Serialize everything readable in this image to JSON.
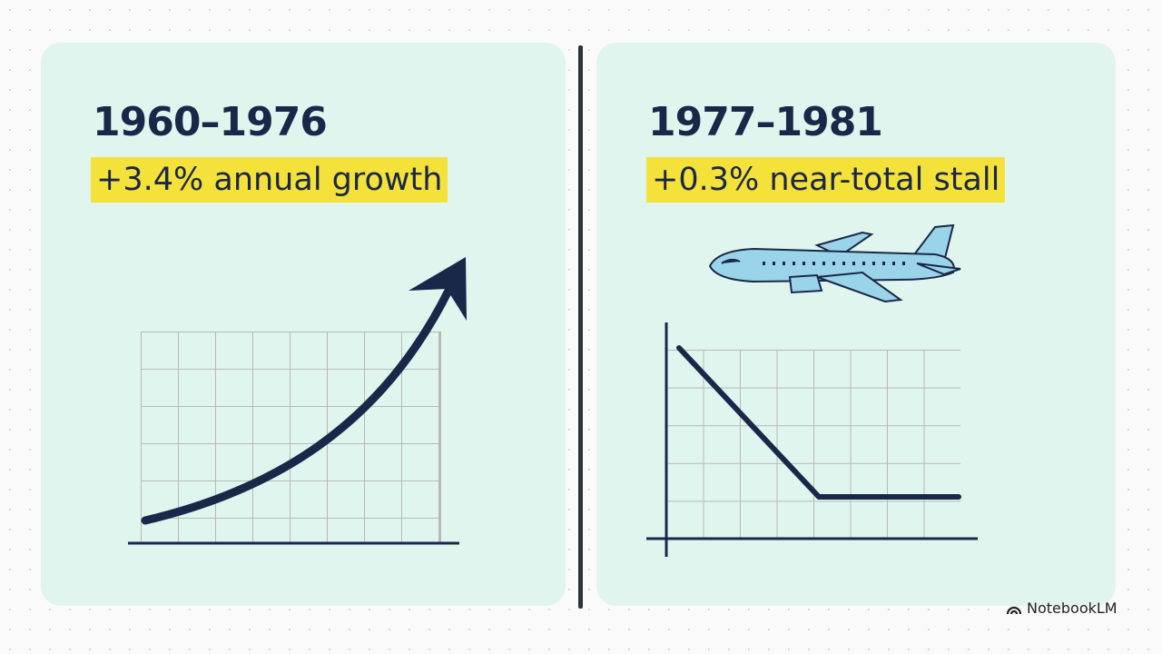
{
  "panels": [
    {
      "title": "1960–1976",
      "subtitle": "+3.4% annual growth"
    },
    {
      "title": "1977–1981",
      "subtitle": "+0.3% near-total stall"
    }
  ],
  "watermark": "NotebookLM"
}
